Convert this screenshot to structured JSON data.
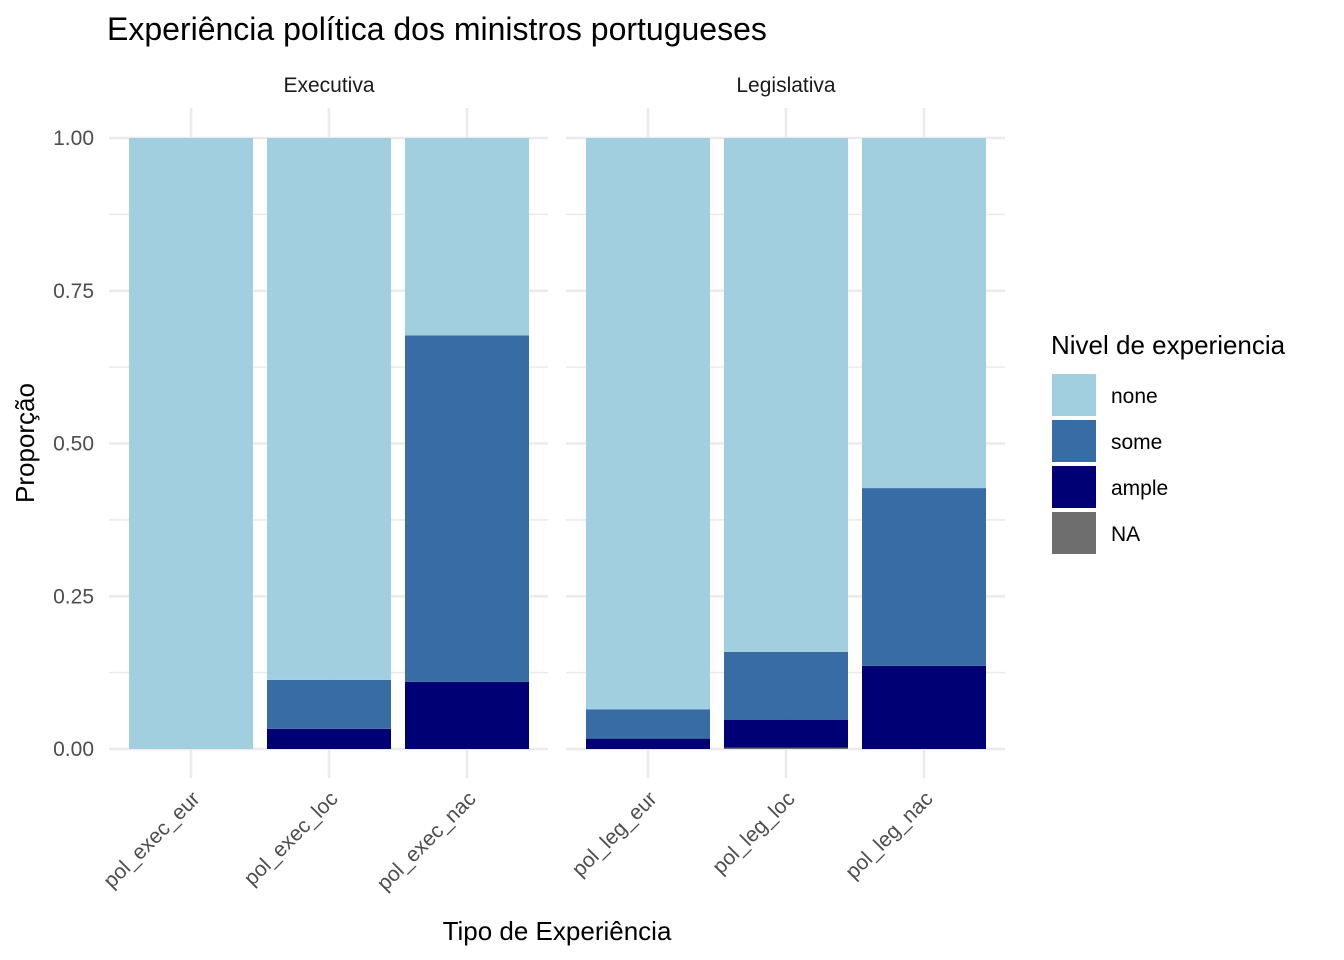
{
  "chart_data": {
    "type": "bar",
    "stacked": true,
    "title": "Experiência política dos ministros portugueses",
    "xlabel": "Tipo de Experiência",
    "ylabel": "Proporção",
    "ylim": [
      0,
      1
    ],
    "yticks": [
      "0.00",
      "0.25",
      "0.50",
      "0.75",
      "1.00"
    ],
    "ytick_values": [
      0,
      0.25,
      0.5,
      0.75,
      1
    ],
    "grid": true,
    "legend": {
      "title": "Nivel de experiencia",
      "placement": "right",
      "entries": [
        {
          "name": "none",
          "color": "#A1CFE0"
        },
        {
          "name": "some",
          "color": "#386CA4"
        },
        {
          "name": "ample",
          "color": "#000075"
        },
        {
          "name": "NA",
          "color": "#6E6E6E"
        }
      ]
    },
    "facets": [
      {
        "label": "Executiva",
        "categories": [
          "pol_exec_eur",
          "pol_exec_loc",
          "pol_exec_nac"
        ],
        "series": [
          {
            "name": "NA",
            "values": [
              0,
              0,
              0
            ]
          },
          {
            "name": "ample",
            "values": [
              0,
              0.033,
              0.11
            ]
          },
          {
            "name": "some",
            "values": [
              0,
              0.08,
              0.567
            ]
          },
          {
            "name": "none",
            "values": [
              1,
              0.887,
              0.323
            ]
          }
        ]
      },
      {
        "label": "Legislativa",
        "categories": [
          "pol_leg_eur",
          "pol_leg_loc",
          "pol_leg_nac"
        ],
        "series": [
          {
            "name": "NA",
            "values": [
              0,
              0.002,
              0
            ]
          },
          {
            "name": "ample",
            "values": [
              0.017,
              0.046,
              0.136
            ]
          },
          {
            "name": "some",
            "values": [
              0.048,
              0.111,
              0.291
            ]
          },
          {
            "name": "none",
            "values": [
              0.935,
              0.841,
              0.573
            ]
          }
        ]
      }
    ]
  }
}
